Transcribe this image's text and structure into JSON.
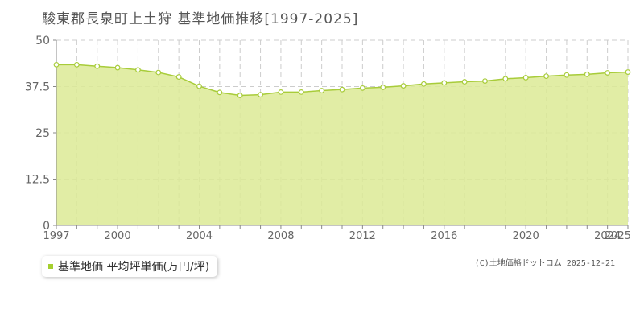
{
  "title": "駿東郡長泉町上土狩 基準地価推移[1997-2025]",
  "legend": {
    "label": "基準地価 平均坪単価(万円/坪)"
  },
  "copyright": "(C)土地価格ドットコム 2025-12-21",
  "colors": {
    "fill": "#dcea95",
    "line": "#a8cc3a",
    "marker_fill": "#ffffff",
    "legend_swatch": "#a5cf2e",
    "grid": "#cccccc"
  },
  "chart_data": {
    "type": "area",
    "title": "駿東郡長泉町上土狩 基準地価推移[1997-2025]",
    "xlabel": "",
    "ylabel": "",
    "xlim": [
      1997,
      2025
    ],
    "ylim": [
      0,
      50
    ],
    "yticks": [
      0,
      12.5,
      25,
      37.5,
      50
    ],
    "ytick_labels": [
      "0",
      "12.5",
      "25",
      "37.5",
      "50"
    ],
    "xtick_labels": [
      "1997",
      "2000",
      "2004",
      "2008",
      "2012",
      "2016",
      "2020",
      "2024",
      "2025"
    ],
    "xtick_values": [
      1997,
      2000,
      2004,
      2008,
      2012,
      2016,
      2020,
      2024,
      2025
    ],
    "grid": true,
    "legend_position": "bottom-left",
    "series": [
      {
        "name": "基準地価 平均坪単価(万円/坪)",
        "x": [
          1997,
          1998,
          1999,
          2000,
          2001,
          2002,
          2003,
          2004,
          2005,
          2006,
          2007,
          2008,
          2009,
          2010,
          2011,
          2012,
          2013,
          2014,
          2015,
          2016,
          2017,
          2018,
          2019,
          2020,
          2021,
          2022,
          2023,
          2024,
          2025
        ],
        "values": [
          43.4,
          43.4,
          43.0,
          42.6,
          42.0,
          41.3,
          40.1,
          37.6,
          35.9,
          35.1,
          35.3,
          36.0,
          36.0,
          36.4,
          36.7,
          37.1,
          37.3,
          37.7,
          38.2,
          38.5,
          38.8,
          39.0,
          39.6,
          39.9,
          40.3,
          40.6,
          40.8,
          41.2,
          41.4
        ]
      }
    ]
  }
}
